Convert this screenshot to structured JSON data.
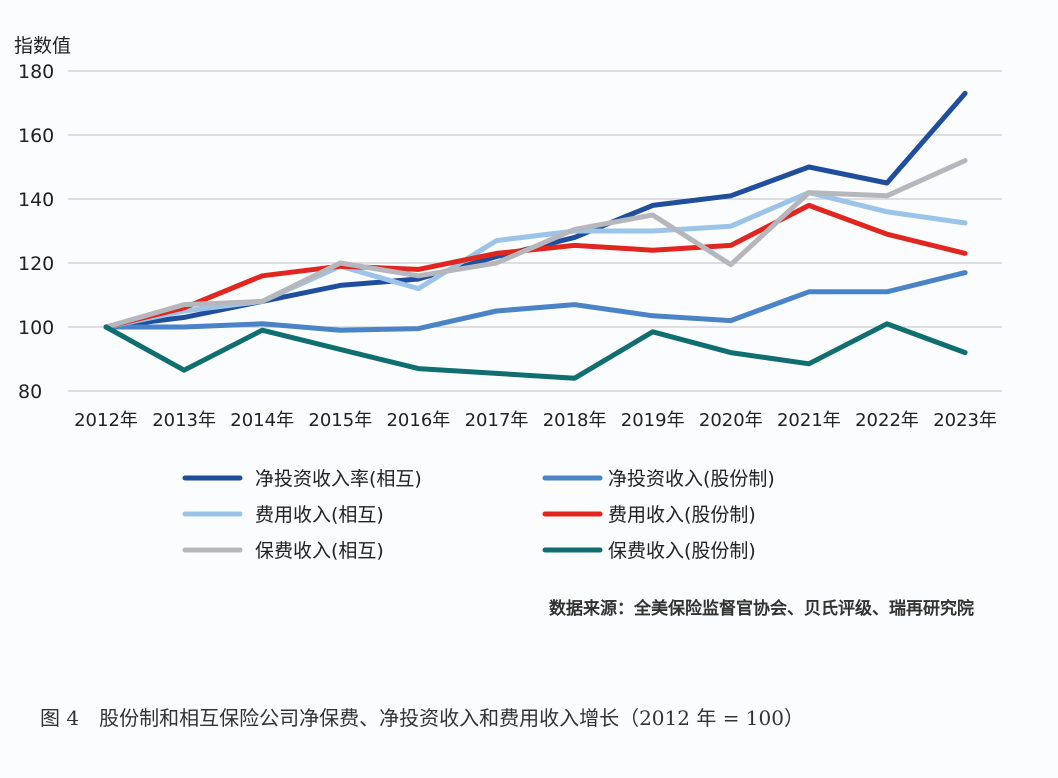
{
  "chart_data": {
    "type": "line",
    "ylabel": "指数值",
    "ylim": [
      80,
      180
    ],
    "yticks": [
      "80",
      "100",
      "120",
      "140",
      "160",
      "180"
    ],
    "grid": true,
    "legend_position": "bottom",
    "categories": [
      "2012年",
      "2013年",
      "2014年",
      "2015年",
      "2016年",
      "2017年",
      "2018年",
      "2019年",
      "2020年",
      "2021年",
      "2022年",
      "2023年"
    ],
    "series": [
      {
        "name": "净投资收入率(相互)",
        "color": "#1f4e9c",
        "values": [
          100,
          103,
          108,
          113,
          115,
          122,
          128,
          138,
          141,
          150,
          145,
          173
        ]
      },
      {
        "name": "净投资收入(股份制)",
        "color": "#4a84c6",
        "values": [
          100,
          100,
          101,
          99,
          99.5,
          105,
          107,
          103.5,
          102,
          111,
          111,
          117
        ]
      },
      {
        "name": "费用收入(相互)",
        "color": "#9cc4e8",
        "values": [
          100,
          105,
          108,
          119,
          112,
          127,
          130,
          130,
          131.5,
          142,
          136,
          132.5
        ]
      },
      {
        "name": "费用收入(股份制)",
        "color": "#e0261e",
        "values": [
          100,
          106,
          116,
          119,
          118,
          123,
          125.5,
          124,
          125.5,
          138,
          129,
          123
        ]
      },
      {
        "name": "保费收入(相互)",
        "color": "#b5b7bc",
        "values": [
          100,
          107,
          108,
          120,
          116,
          120,
          130.5,
          135,
          119.5,
          142,
          141,
          152
        ]
      },
      {
        "name": "保费收入(股份制)",
        "color": "#0f6e70",
        "values": [
          100,
          86.5,
          99,
          93,
          87,
          85.5,
          84,
          98.5,
          92,
          88.5,
          101,
          92
        ]
      }
    ],
    "source": "数据来源：全美保险监督官协会、贝氏评级、瑞再研究院",
    "caption": "图 4　股份制和相互保险公司净保费、净投资收入和费用收入增长（2012 年 = 100）"
  }
}
